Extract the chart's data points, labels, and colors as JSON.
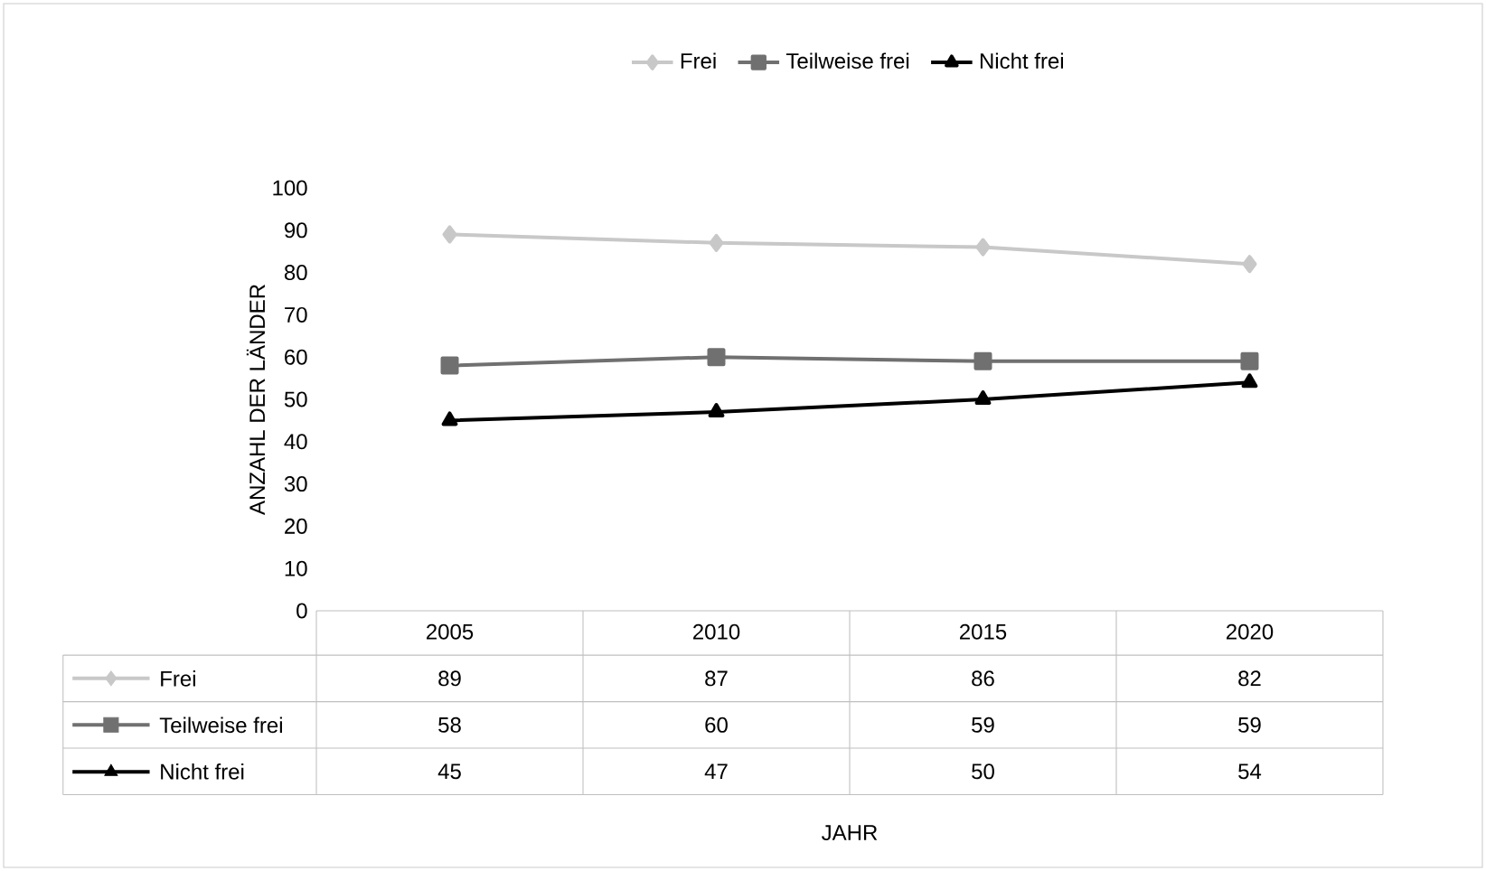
{
  "chart_data": {
    "type": "line",
    "annotations": [
      "JAHR"
    ],
    "ylabel": "ANZAHL DER LÄNDER",
    "categories": [
      "2005",
      "2010",
      "2015",
      "2020"
    ],
    "series": [
      {
        "name": "Frei",
        "color": "#c8c8c8",
        "marker": "diamond",
        "values": [
          89,
          87,
          86,
          82
        ]
      },
      {
        "name": "Teilweise frei",
        "color": "#707070",
        "marker": "square",
        "values": [
          58,
          60,
          59,
          59
        ]
      },
      {
        "name": "Nicht frei",
        "color": "#000000",
        "marker": "triangle",
        "values": [
          45,
          47,
          50,
          54
        ]
      }
    ],
    "ylim": [
      0,
      100
    ],
    "yticks": [
      0,
      10,
      20,
      30,
      40,
      50,
      60,
      70,
      80,
      90,
      100
    ],
    "legend": "top",
    "data_labels": true,
    "line_style": "solid"
  }
}
